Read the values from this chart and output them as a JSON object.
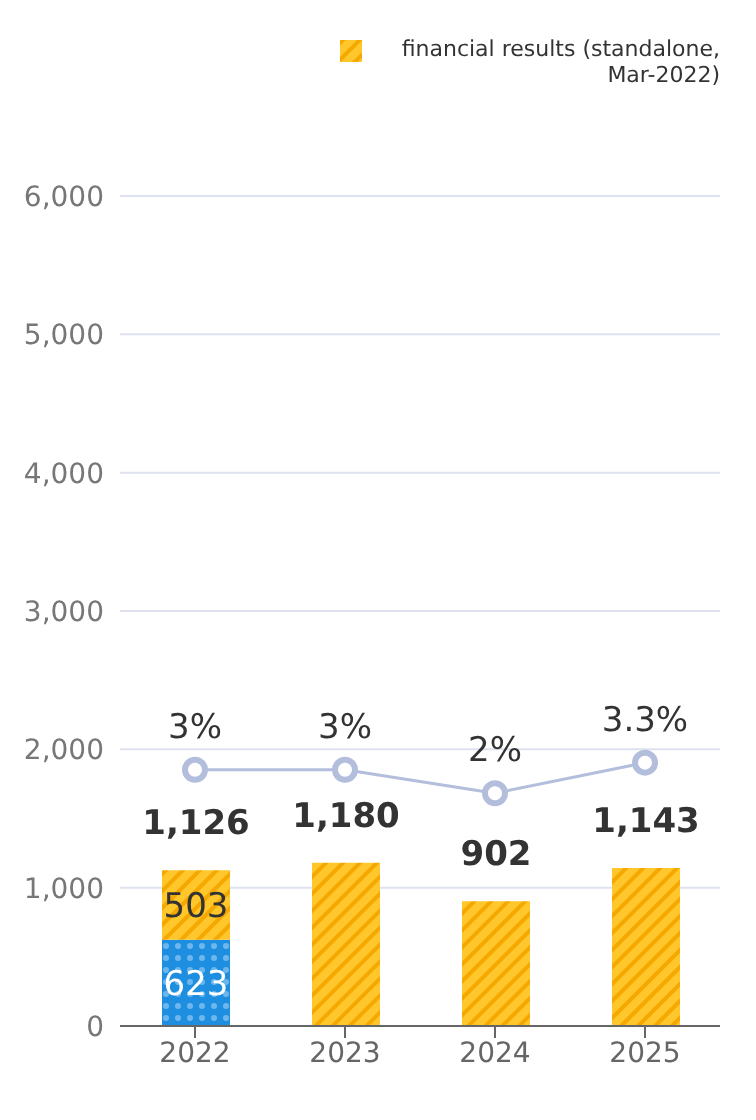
{
  "chart_data": {
    "type": "bar",
    "categories": [
      "2022",
      "2023",
      "2024",
      "2025"
    ],
    "stacked": true,
    "series": [
      {
        "color": "#1e8fe0",
        "values": [
          623,
          null,
          null,
          null
        ],
        "value_labels": [
          "623",
          null,
          null,
          null
        ]
      },
      {
        "name": "financial results (standalone, Mar-2022)",
        "color": "#ffc72c",
        "values": [
          503,
          1180,
          902,
          1143
        ],
        "value_labels": [
          "503",
          null,
          null,
          null
        ]
      },
      {
        "type": "line",
        "axis": "y2",
        "color": "#b3bedc",
        "values": [
          3,
          3,
          2,
          3.3
        ],
        "value_labels": [
          "3%",
          "3%",
          "2%",
          "3.3%"
        ]
      }
    ],
    "totals": [
      "1,126",
      "1,180",
      "902",
      "1,143"
    ],
    "ylim": [
      0,
      6000
    ],
    "yticks": [
      {
        "value": 0,
        "label": "0"
      },
      {
        "value": 1000,
        "label": "1,000"
      },
      {
        "value": 2000,
        "label": "2,000"
      },
      {
        "value": 3000,
        "label": "3,000"
      },
      {
        "value": 4000,
        "label": "4,000"
      },
      {
        "value": 5000,
        "label": "5,000"
      },
      {
        "value": 6000,
        "label": "6,000"
      }
    ],
    "y2lim": [
      -7.9,
      27.4
    ],
    "grid": "y",
    "legend": "top right",
    "marker": "circle",
    "line_style": "solid"
  }
}
